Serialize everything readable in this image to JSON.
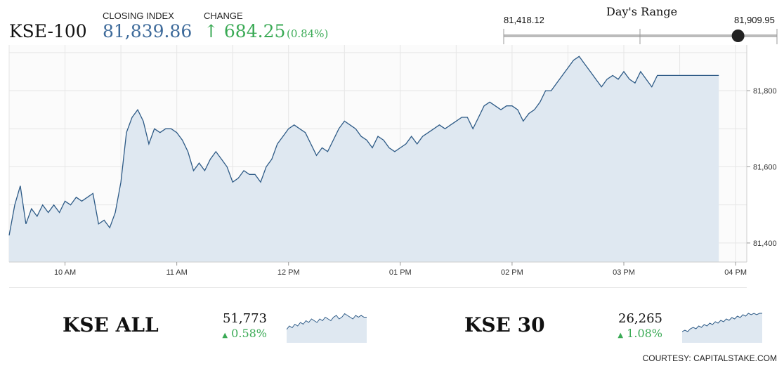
{
  "header": {
    "ticker": "KSE-100",
    "closing_label": "CLOSING INDEX",
    "closing_value": "81,839.86",
    "change_label": "CHANGE",
    "change_arrow": "↑",
    "change_value": "684.25",
    "change_pct": "(0.84%)"
  },
  "day_range": {
    "title": "Day's Range",
    "low": "81,418.12",
    "high": "81,909.95",
    "current": 81839.86
  },
  "chart_data": [
    {
      "type": "area",
      "series": [
        {
          "points": [
            [
              9.5,
              81420
            ],
            [
              9.55,
              81500
            ],
            [
              9.6,
              81550
            ],
            [
              9.65,
              81450
            ],
            [
              9.7,
              81490
            ],
            [
              9.75,
              81470
            ],
            [
              9.8,
              81500
            ],
            [
              9.85,
              81480
            ],
            [
              9.9,
              81500
            ],
            [
              9.95,
              81480
            ],
            [
              10.0,
              81510
            ],
            [
              10.05,
              81500
            ],
            [
              10.1,
              81520
            ],
            [
              10.15,
              81510
            ],
            [
              10.2,
              81520
            ],
            [
              10.25,
              81530
            ],
            [
              10.3,
              81450
            ],
            [
              10.35,
              81460
            ],
            [
              10.4,
              81440
            ],
            [
              10.45,
              81480
            ],
            [
              10.5,
              81560
            ],
            [
              10.55,
              81690
            ],
            [
              10.6,
              81730
            ],
            [
              10.65,
              81750
            ],
            [
              10.7,
              81720
            ],
            [
              10.75,
              81660
            ],
            [
              10.8,
              81700
            ],
            [
              10.85,
              81690
            ],
            [
              10.9,
              81700
            ],
            [
              10.95,
              81700
            ],
            [
              11.0,
              81690
            ],
            [
              11.05,
              81670
            ],
            [
              11.1,
              81640
            ],
            [
              11.15,
              81590
            ],
            [
              11.2,
              81610
            ],
            [
              11.25,
              81590
            ],
            [
              11.3,
              81620
            ],
            [
              11.35,
              81640
            ],
            [
              11.4,
              81620
            ],
            [
              11.45,
              81600
            ],
            [
              11.5,
              81560
            ],
            [
              11.55,
              81570
            ],
            [
              11.6,
              81590
            ],
            [
              11.65,
              81580
            ],
            [
              11.7,
              81580
            ],
            [
              11.75,
              81560
            ],
            [
              11.8,
              81600
            ],
            [
              11.85,
              81620
            ],
            [
              11.9,
              81660
            ],
            [
              11.95,
              81680
            ],
            [
              12.0,
              81700
            ],
            [
              12.05,
              81710
            ],
            [
              12.1,
              81700
            ],
            [
              12.15,
              81690
            ],
            [
              12.2,
              81660
            ],
            [
              12.25,
              81630
            ],
            [
              12.3,
              81650
            ],
            [
              12.35,
              81640
            ],
            [
              12.4,
              81670
            ],
            [
              12.45,
              81700
            ],
            [
              12.5,
              81720
            ],
            [
              12.55,
              81710
            ],
            [
              12.6,
              81700
            ],
            [
              12.65,
              81680
            ],
            [
              12.7,
              81670
            ],
            [
              12.75,
              81650
            ],
            [
              12.8,
              81680
            ],
            [
              12.85,
              81670
            ],
            [
              12.9,
              81650
            ],
            [
              12.95,
              81640
            ],
            [
              13.0,
              81650
            ],
            [
              13.05,
              81660
            ],
            [
              13.1,
              81680
            ],
            [
              13.15,
              81660
            ],
            [
              13.2,
              81680
            ],
            [
              13.25,
              81690
            ],
            [
              13.3,
              81700
            ],
            [
              13.35,
              81710
            ],
            [
              13.4,
              81700
            ],
            [
              13.45,
              81710
            ],
            [
              13.5,
              81720
            ],
            [
              13.55,
              81730
            ],
            [
              13.6,
              81730
            ],
            [
              13.65,
              81700
            ],
            [
              13.7,
              81730
            ],
            [
              13.75,
              81760
            ],
            [
              13.8,
              81770
            ],
            [
              13.85,
              81760
            ],
            [
              13.9,
              81750
            ],
            [
              13.95,
              81760
            ],
            [
              14.0,
              81760
            ],
            [
              14.05,
              81750
            ],
            [
              14.1,
              81720
            ],
            [
              14.15,
              81740
            ],
            [
              14.2,
              81750
            ],
            [
              14.25,
              81770
            ],
            [
              14.3,
              81800
            ],
            [
              14.35,
              81800
            ],
            [
              14.4,
              81820
            ],
            [
              14.45,
              81840
            ],
            [
              14.5,
              81860
            ],
            [
              14.55,
              81880
            ],
            [
              14.6,
              81890
            ],
            [
              14.65,
              81870
            ],
            [
              14.7,
              81850
            ],
            [
              14.75,
              81830
            ],
            [
              14.8,
              81810
            ],
            [
              14.85,
              81830
            ],
            [
              14.9,
              81840
            ],
            [
              14.95,
              81830
            ],
            [
              15.0,
              81850
            ],
            [
              15.05,
              81830
            ],
            [
              15.1,
              81820
            ],
            [
              15.15,
              81850
            ],
            [
              15.2,
              81830
            ],
            [
              15.25,
              81810
            ],
            [
              15.3,
              81840
            ],
            [
              15.35,
              81840
            ],
            [
              15.4,
              81840
            ],
            [
              15.45,
              81840
            ],
            [
              15.5,
              81840
            ],
            [
              15.55,
              81840
            ],
            [
              15.6,
              81840
            ],
            [
              15.65,
              81840
            ],
            [
              15.7,
              81840
            ],
            [
              15.75,
              81840
            ],
            [
              15.8,
              81840
            ],
            [
              15.85,
              81840
            ]
          ]
        }
      ],
      "xlim": [
        9.5,
        16.1
      ],
      "ylim": [
        81350,
        81920
      ],
      "x_ticks": [
        10,
        11,
        12,
        13,
        14,
        15,
        16
      ],
      "x_tick_labels": [
        "10 AM",
        "11 AM",
        "12 PM",
        "01 PM",
        "02 PM",
        "03 PM",
        "04 PM"
      ],
      "y_ticks": [
        81400,
        81600,
        81800
      ],
      "y_tick_labels": [
        "81,400",
        "81,600",
        "81,800"
      ],
      "grid": true,
      "line_color": "#2d5a86",
      "fill_color": "#dfe8f1"
    },
    {
      "type": "area",
      "series": [
        {
          "values": [
            10,
            12,
            11,
            13,
            12,
            14,
            13,
            15,
            14,
            16,
            15,
            14,
            16,
            15,
            17,
            16,
            15,
            17,
            18,
            16,
            17,
            19,
            18,
            17,
            16,
            18,
            17,
            18,
            17,
            17
          ]
        }
      ],
      "line_color": "#2d5a86",
      "fill_color": "#dfe8f1"
    },
    {
      "type": "area",
      "series": [
        {
          "values": [
            5,
            6,
            5,
            7,
            8,
            7,
            9,
            8,
            10,
            9,
            11,
            10,
            12,
            11,
            13,
            12,
            14,
            13,
            15,
            14,
            16,
            15,
            17,
            16,
            18,
            17,
            18,
            17,
            18,
            18
          ]
        }
      ],
      "line_color": "#2d5a86",
      "fill_color": "#dfe8f1"
    }
  ],
  "sub_indices": [
    {
      "name": "KSE ALL",
      "value": "51,773",
      "arrow": "▲",
      "change": "0.58%"
    },
    {
      "name": "KSE 30",
      "value": "26,265",
      "arrow": "▲",
      "change": "1.08%"
    }
  ],
  "credit": "COURTESY: CAPITALSTAKE.COM"
}
